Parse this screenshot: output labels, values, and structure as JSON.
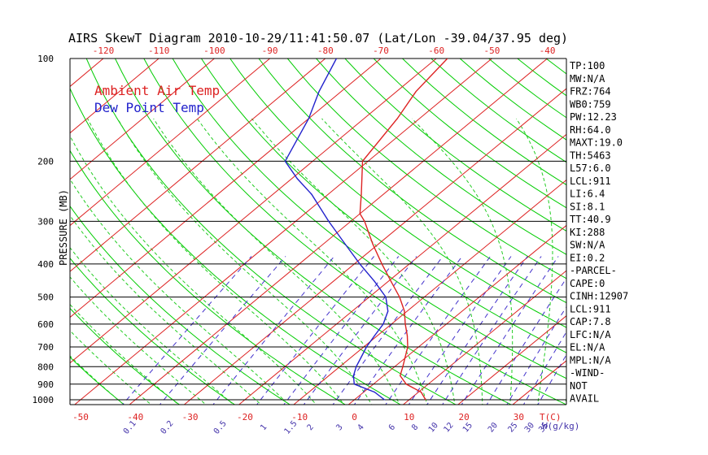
{
  "chart_data": {
    "type": "line",
    "title": "AIRS SkewT Diagram 2010-10-29/11:41:50.07 (Lat/Lon -39.04/37.95 deg)",
    "ylabel": "PRESSURE (MB)",
    "y_scale": "log",
    "ylim": [
      1000,
      100
    ],
    "pressure_ticks": [
      100,
      200,
      300,
      400,
      500,
      600,
      700,
      800,
      900,
      1000
    ],
    "top_temp_ticks": [
      -120,
      -110,
      -100,
      -90,
      -80,
      -70,
      -60,
      -50,
      -40
    ],
    "bottom_temp_ticks": [
      -50,
      -40,
      -30,
      -20,
      -10,
      0,
      10,
      20,
      30
    ],
    "bottom_temp_unit": "T(C)",
    "mixing_ratio_ticks": [
      "0.1",
      "0.2",
      "0.5",
      "1",
      "1.5",
      "2",
      "3",
      "4",
      "6",
      "8",
      "10",
      "12",
      "15",
      "20",
      "25",
      "30",
      "35"
    ],
    "mixing_ratio_unit": "W(g/kg)",
    "legend": [
      {
        "name": "Ambient Air Temp",
        "color": "#dd2222"
      },
      {
        "name": "Dew Point Temp",
        "color": "#2222cc"
      }
    ],
    "legend_position": "top-left",
    "series": [
      {
        "key": "ambient",
        "color": "#dd2222",
        "points": [
          {
            "p": 1000,
            "t": 13.0
          },
          {
            "p": 950,
            "t": 10.5
          },
          {
            "p": 900,
            "t": 6.0
          },
          {
            "p": 850,
            "t": 3.0
          },
          {
            "p": 800,
            "t": 1.5
          },
          {
            "p": 750,
            "t": -0.2
          },
          {
            "p": 700,
            "t": -2.0
          },
          {
            "p": 650,
            "t": -4.5
          },
          {
            "p": 600,
            "t": -7.5
          },
          {
            "p": 550,
            "t": -10.5
          },
          {
            "p": 500,
            "t": -14.5
          },
          {
            "p": 450,
            "t": -19.5
          },
          {
            "p": 400,
            "t": -25.0
          },
          {
            "p": 350,
            "t": -31.0
          },
          {
            "p": 300,
            "t": -37.5
          },
          {
            "p": 285,
            "t": -40.0
          },
          {
            "p": 250,
            "t": -44.0
          },
          {
            "p": 200,
            "t": -51.0
          },
          {
            "p": 150,
            "t": -54.0
          },
          {
            "p": 125,
            "t": -56.5
          },
          {
            "p": 100,
            "t": -58.0
          }
        ]
      },
      {
        "key": "dewpoint",
        "color": "#2222cc",
        "points": [
          {
            "p": 1000,
            "t": 5.5
          },
          {
            "p": 950,
            "t": 2.0
          },
          {
            "p": 900,
            "t": -3.5
          },
          {
            "p": 850,
            "t": -5.5
          },
          {
            "p": 800,
            "t": -7.0
          },
          {
            "p": 750,
            "t": -8.2
          },
          {
            "p": 700,
            "t": -9.5
          },
          {
            "p": 650,
            "t": -10.5
          },
          {
            "p": 600,
            "t": -11.5
          },
          {
            "p": 550,
            "t": -13.5
          },
          {
            "p": 500,
            "t": -17.0
          },
          {
            "p": 450,
            "t": -22.5
          },
          {
            "p": 400,
            "t": -29.0
          },
          {
            "p": 350,
            "t": -36.0
          },
          {
            "p": 300,
            "t": -44.0
          },
          {
            "p": 250,
            "t": -53.0
          },
          {
            "p": 225,
            "t": -59.0
          },
          {
            "p": 200,
            "t": -65.0
          },
          {
            "p": 150,
            "t": -70.0
          },
          {
            "p": 125,
            "t": -74.0
          },
          {
            "p": 100,
            "t": -78.0
          }
        ]
      }
    ],
    "stats": [
      "TP:100",
      "MW:N/A",
      "FRZ:764",
      "WB0:759",
      "PW:12.23",
      "RH:64.0",
      "MAXT:19.0",
      "TH:5463",
      "L57:6.0",
      "LCL:911",
      "LI:6.4",
      "SI:8.1",
      "TT:40.9",
      "KI:288",
      "SW:N/A",
      "EI:0.2",
      "-PARCEL-",
      "CAPE:0",
      "CINH:12907",
      "LCL:911",
      "CAP:7.8",
      "LFC:N/A",
      "EL:N/A",
      "MPL:N/A",
      "-WIND-",
      "NOT",
      "AVAIL"
    ],
    "colors": {
      "isobar": "#000000",
      "isotherm": "#dd2222",
      "dry_adiabat": "#00cc00",
      "moist_adiabat": "#22cc22",
      "mixing_ratio": "#4433cc",
      "temp_tick_label": "#dd2222",
      "mixing_ratio_label": "#4433aa"
    }
  }
}
